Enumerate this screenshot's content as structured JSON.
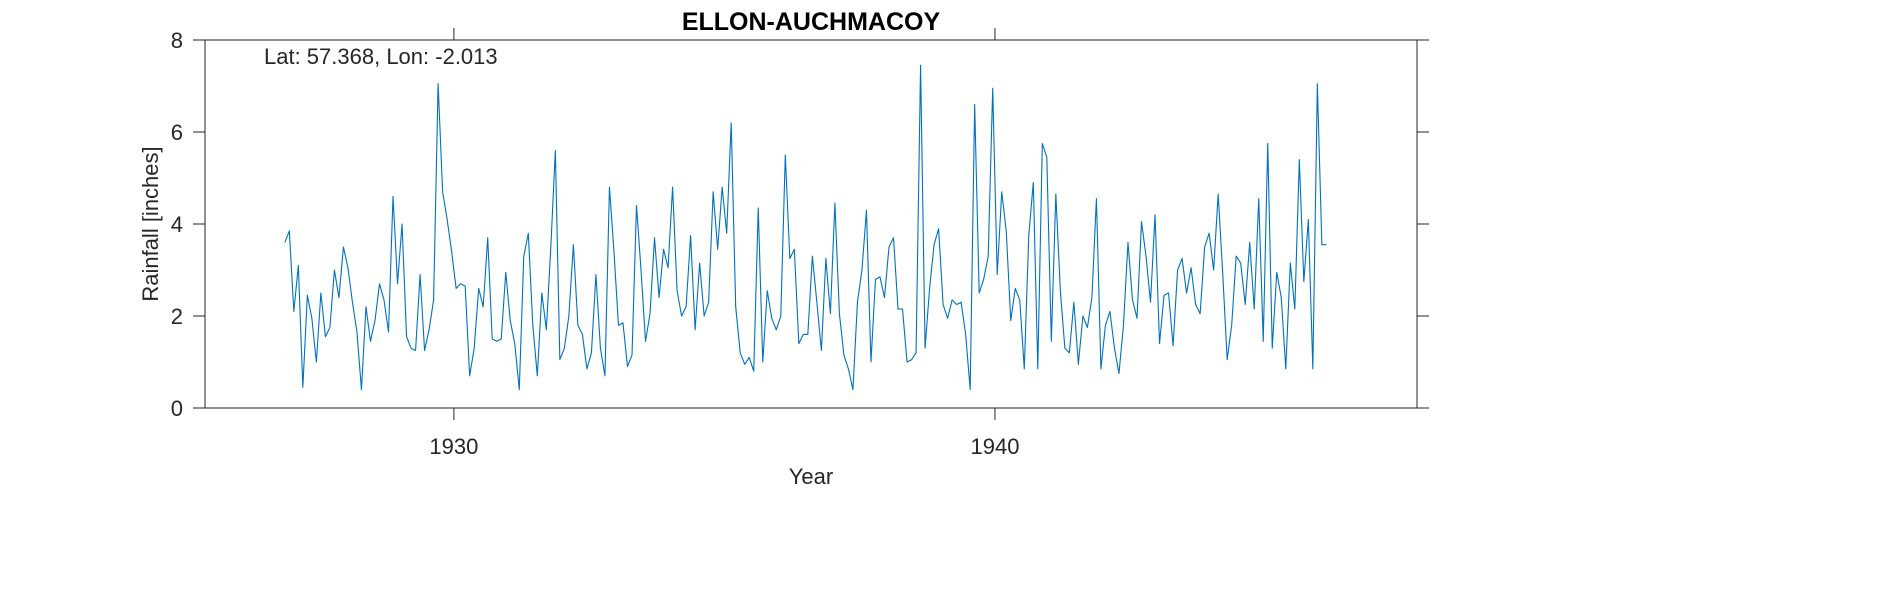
{
  "chart_data": {
    "type": "line",
    "title": "ELLON-AUCHMACOY",
    "annotation": "Lat: 57.368, Lon: -2.013",
    "xlabel": "Year",
    "ylabel": "Rainfall [inches]",
    "xlim": [
      1925.4,
      1947.8
    ],
    "ylim": [
      0,
      8
    ],
    "xticks": [
      1930,
      1940
    ],
    "yticks": [
      0,
      2,
      4,
      6,
      8
    ],
    "grid": false,
    "line_color": "#0072BD",
    "series": [
      {
        "x_start": "1926.875",
        "x_step_months": 1,
        "values": [
          3.6,
          3.85,
          2.1,
          3.1,
          0.45,
          2.45,
          1.95,
          1.0,
          2.5,
          1.55,
          1.75,
          3.0,
          2.4,
          3.5,
          3.05,
          2.3,
          1.65,
          0.4,
          2.2,
          1.45,
          1.9,
          2.7,
          2.35,
          1.65,
          4.6,
          2.7,
          4.0,
          1.55,
          1.3,
          1.25,
          2.9,
          1.25,
          1.7,
          2.35,
          7.05,
          4.7,
          4.1,
          3.4,
          2.6,
          2.7,
          2.65,
          0.7,
          1.3,
          2.6,
          2.2,
          3.7,
          1.5,
          1.45,
          1.5,
          2.95,
          1.9,
          1.4,
          0.4,
          3.3,
          3.8,
          1.8,
          0.7,
          2.5,
          1.7,
          3.5,
          5.6,
          1.05,
          1.3,
          2.0,
          3.55,
          1.8,
          1.6,
          0.85,
          1.2,
          2.9,
          1.3,
          0.7,
          4.8,
          3.4,
          1.8,
          1.85,
          0.9,
          1.15,
          4.4,
          3.0,
          1.45,
          2.05,
          3.7,
          2.4,
          3.45,
          3.05,
          4.8,
          2.55,
          2.0,
          2.2,
          3.75,
          1.7,
          3.15,
          2.0,
          2.3,
          4.7,
          3.45,
          4.8,
          3.8,
          6.2,
          2.2,
          1.2,
          0.95,
          1.1,
          0.8,
          4.35,
          1.0,
          2.55,
          1.95,
          1.7,
          2.0,
          5.5,
          3.25,
          3.45,
          1.4,
          1.6,
          1.6,
          3.3,
          2.3,
          1.25,
          3.25,
          2.05,
          4.45,
          2.05,
          1.15,
          0.85,
          0.4,
          2.3,
          3.0,
          4.3,
          1.0,
          2.8,
          2.85,
          2.4,
          3.5,
          3.7,
          2.15,
          2.15,
          1.0,
          1.05,
          1.2,
          7.45,
          1.3,
          2.6,
          3.55,
          3.9,
          2.25,
          1.95,
          2.35,
          2.25,
          2.3,
          1.6,
          0.4,
          6.6,
          2.5,
          2.8,
          3.3,
          6.95,
          2.9,
          4.7,
          3.85,
          1.9,
          2.6,
          2.35,
          0.85,
          3.75,
          4.9,
          0.85,
          5.75,
          5.45,
          1.45,
          4.65,
          2.55,
          1.3,
          1.2,
          2.3,
          0.95,
          2.0,
          1.75,
          2.4,
          4.55,
          0.85,
          1.8,
          2.1,
          1.3,
          0.75,
          1.8,
          3.6,
          2.35,
          1.95,
          4.05,
          3.3,
          2.3,
          4.2,
          1.4,
          2.45,
          2.5,
          1.35,
          3.0,
          3.25,
          2.5,
          3.05,
          2.25,
          2.05,
          3.5,
          3.8,
          3.0,
          4.65,
          2.95,
          1.05,
          1.8,
          3.3,
          3.15,
          2.25,
          3.6,
          2.15,
          4.55,
          1.45,
          5.75,
          1.3,
          2.95,
          2.4,
          0.85,
          3.15,
          2.15,
          5.4,
          2.75,
          4.1,
          0.85,
          7.05,
          3.55,
          3.55
        ]
      }
    ]
  }
}
